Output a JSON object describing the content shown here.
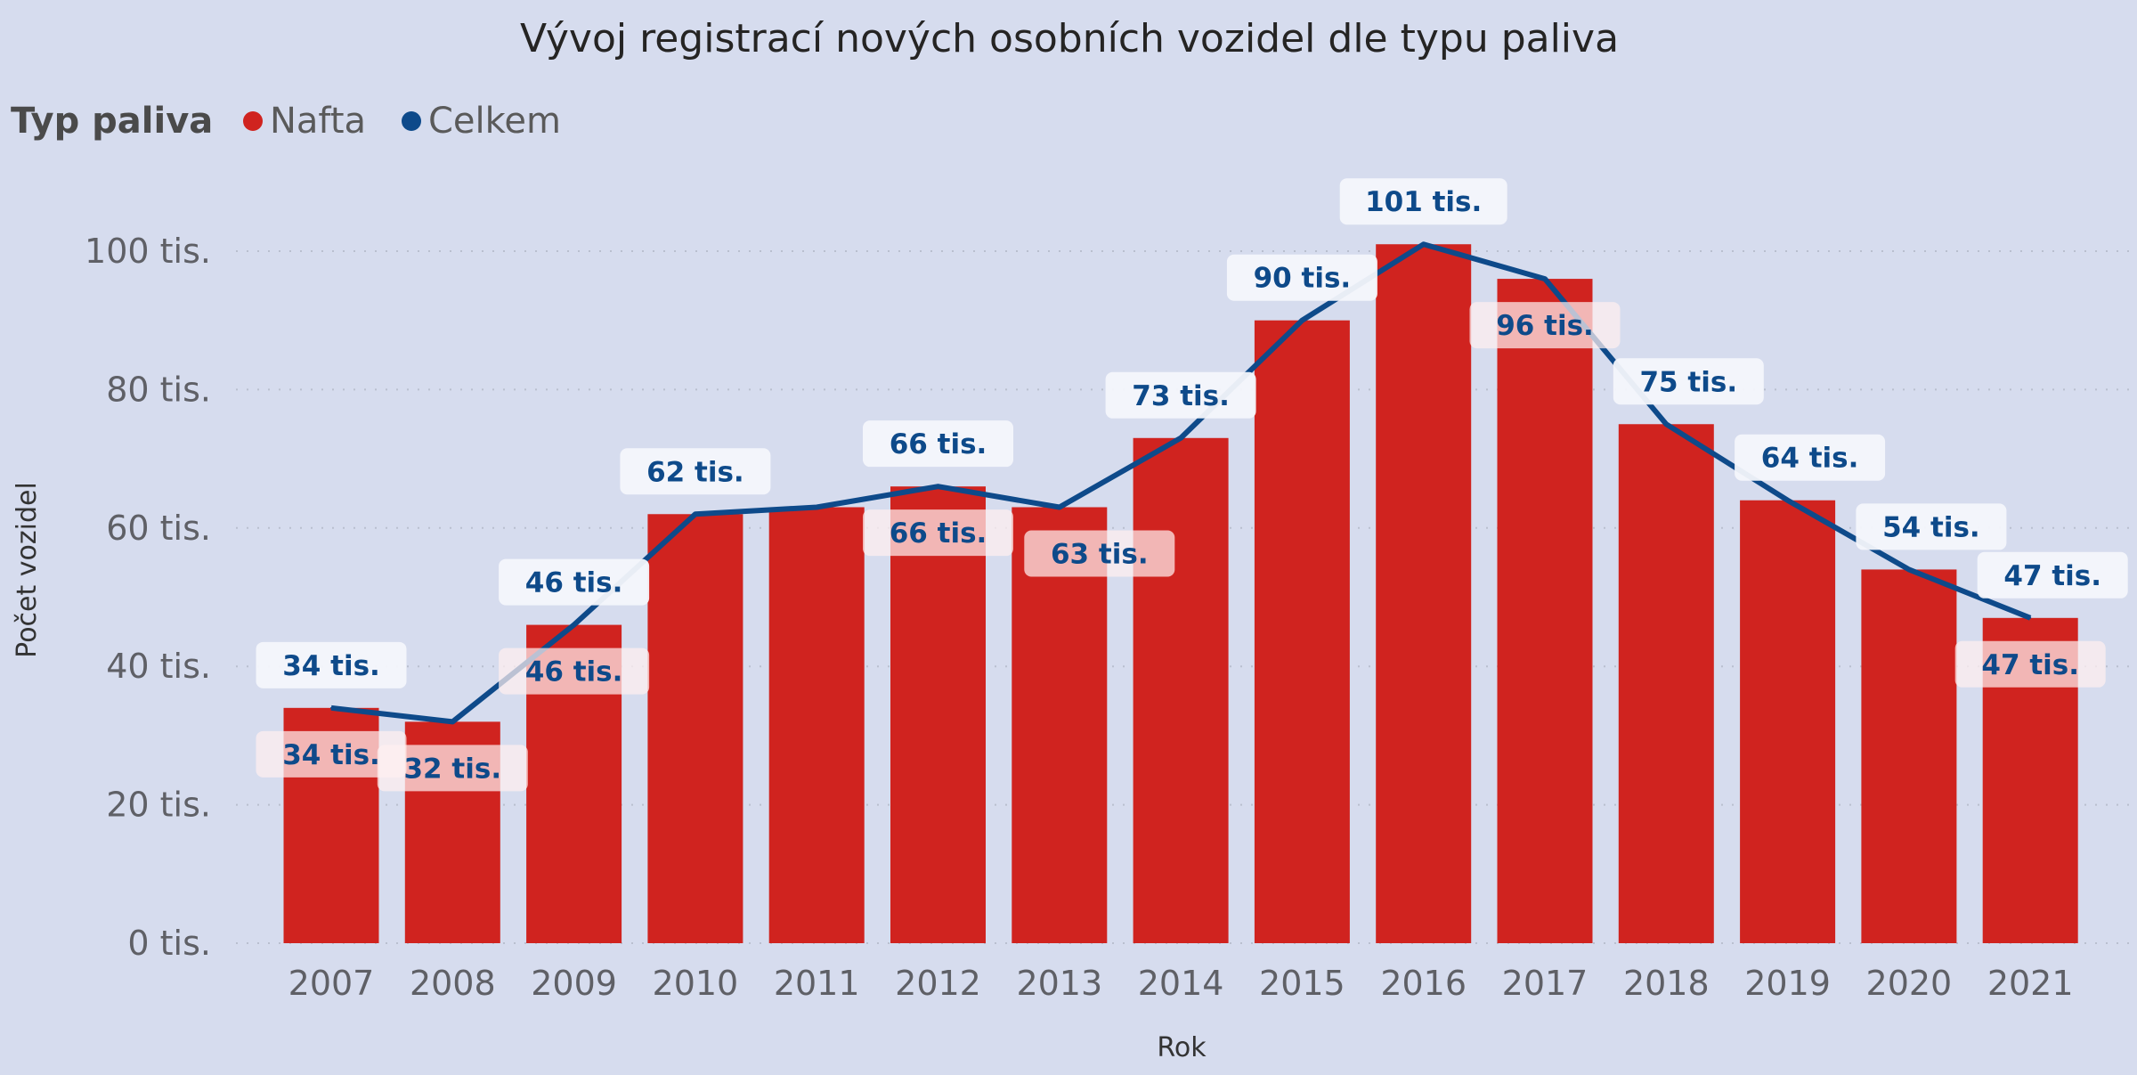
{
  "chart_data": {
    "type": "bar+line",
    "title": "Vývoj registrací nových osobních vozidel dle typu paliva",
    "legend": {
      "title": "Typ paliva",
      "position": "top-left"
    },
    "xlabel": "Rok",
    "ylabel": "Počet vozidel",
    "ylim": [
      0,
      105000
    ],
    "yticks": [
      0,
      20000,
      40000,
      60000,
      80000,
      100000
    ],
    "ytick_labels": [
      "0 tis.",
      "20 tis.",
      "40 tis.",
      "60 tis.",
      "80 tis.",
      "100 tis."
    ],
    "grid": "horizontal dotted",
    "categories": [
      "2007",
      "2008",
      "2009",
      "2010",
      "2011",
      "2012",
      "2013",
      "2014",
      "2015",
      "2016",
      "2017",
      "2018",
      "2019",
      "2020",
      "2021"
    ],
    "series": [
      {
        "name": "Nafta",
        "type": "bar",
        "color": "#d0231f",
        "values": [
          34000,
          32000,
          46000,
          62000,
          63000,
          66000,
          63000,
          73000,
          90000,
          101000,
          96000,
          75000,
          64000,
          54000,
          47000
        ],
        "data_labels": [
          "34 tis.",
          "32 tis.",
          "46 tis.",
          "",
          "",
          "66 tis.",
          "63 tis.",
          "",
          "",
          "",
          "96 tis.",
          "",
          "",
          "",
          "47 tis."
        ]
      },
      {
        "name": "Celkem",
        "type": "line",
        "color": "#0e4a8a",
        "values": [
          34000,
          32000,
          46000,
          62000,
          63000,
          66000,
          63000,
          73000,
          90000,
          101000,
          96000,
          75000,
          64000,
          54000,
          47000
        ],
        "data_labels": [
          "34 tis.",
          "",
          "46 tis.",
          "62 tis.",
          "",
          "66 tis.",
          "",
          "73 tis.",
          "90 tis.",
          "101 tis.",
          "",
          "75 tis.",
          "64 tis.",
          "54 tis.",
          "47 tis."
        ]
      }
    ]
  }
}
